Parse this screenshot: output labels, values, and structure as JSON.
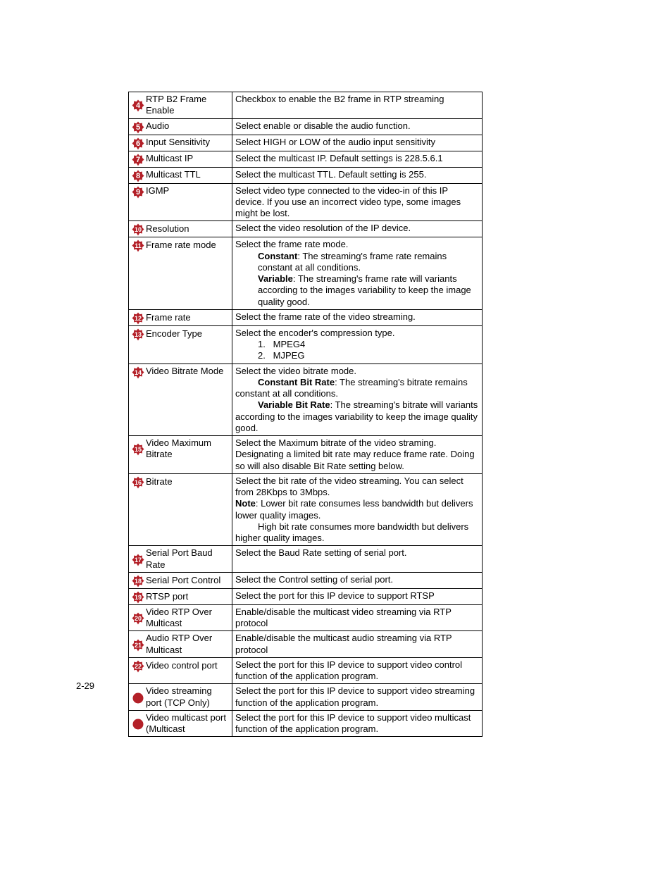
{
  "badge_fill": "#b32028",
  "badge_stroke": "#b32028",
  "badge_text": "#ffffff",
  "page_number": "2-29",
  "rows": [
    {
      "num": "4",
      "label": "RTP B2 Frame Enable",
      "desc": "Checkbox to enable the B2 frame in RTP streaming"
    },
    {
      "num": "5",
      "label": "Audio",
      "desc": "Select enable or disable the audio function."
    },
    {
      "num": "6",
      "label": "Input Sensitivity",
      "desc": "Select HIGH or LOW of the audio input sensitivity"
    },
    {
      "num": "7",
      "label": "Multicast IP",
      "desc": "Select the multicast IP. Default settings is 228.5.6.1"
    },
    {
      "num": "8",
      "label": "Multicast TTL",
      "desc": "Select the multicast TTL. Default setting is 255."
    },
    {
      "num": "9",
      "label": "IGMP",
      "desc": "Select video type connected to the video-in of this IP device. If you use an incorrect video type, some images might be lost."
    },
    {
      "num": "10",
      "label": "Resolution",
      "desc": "Select the video resolution of the IP device."
    },
    {
      "num": "11",
      "label": "Frame rate mode",
      "desc_lead": "Select the frame rate mode.",
      "bold1": "Constant",
      "t1": ": The streaming's frame rate remains constant at all conditions.",
      "bold2": "Variable",
      "t2": ": The streaming's frame rate will variants according to the images variability to keep the image quality good."
    },
    {
      "num": "12",
      "label": "Frame rate",
      "desc": "Select the frame rate of the video streaming."
    },
    {
      "num": "13",
      "label": "Encoder Type",
      "desc_lead": "Select the encoder's compression type.",
      "li1": "1.",
      "li1t": "MPEG4",
      "li2": "2.",
      "li2t": "MJPEG"
    },
    {
      "num": "14",
      "label": "Video Bitrate Mode",
      "desc_lead": "Select the video bitrate mode.",
      "bold1": "Constant Bit Rate",
      "t1": ": The streaming's bitrate remains constant at all conditions.",
      "bold2": "Variable Bit Rate",
      "t2": ": The streaming's bitrate will variants according to the images variability to keep the image quality good."
    },
    {
      "num": "15",
      "label": "Video Maximum Bitrate",
      "desc": "Select the Maximum bitrate of the video straming. Designating a limited bit rate may reduce frame rate.   Doing so will also disable Bit Rate setting below."
    },
    {
      "num": "16",
      "label": "Bitrate",
      "desc_lead": "Select the bit rate of the video streaming. You can select from 28Kbps to 3Mbps.",
      "note_b": "Note",
      "t1": ": Lower bit rate consumes less bandwidth but delivers lower quality images.",
      "t2": "High bit rate consumes more bandwidth but delivers higher quality images."
    },
    {
      "num": "17",
      "label": "Serial Port Baud Rate",
      "desc": "Select the Baud Rate setting of serial port."
    },
    {
      "num": "18",
      "label": "Serial Port Control",
      "desc": "Select the Control setting of serial port."
    },
    {
      "num": "19",
      "label": "RTSP port",
      "desc": "Select the port for this IP device to support RTSP"
    },
    {
      "num": "20",
      "label": "Video RTP Over Multicast",
      "desc": "Enable/disable the multicast video streaming via RTP protocol"
    },
    {
      "num": "21",
      "label": "Audio RTP Over Multicast",
      "desc": "Enable/disable the multicast audio streaming via RTP protocol"
    },
    {
      "num": "22",
      "label": "Video control port",
      "desc": "Select the port for this IP device to support video control function of the application program."
    },
    {
      "num": "",
      "label": "Video streaming port (TCP Only)",
      "desc": "Select the port for this IP device to support video streaming function of the application program."
    },
    {
      "num": "",
      "label": "Video multicast port (Multicast",
      "desc": "Select the port for this IP device to support video multicast function of the application program."
    }
  ]
}
